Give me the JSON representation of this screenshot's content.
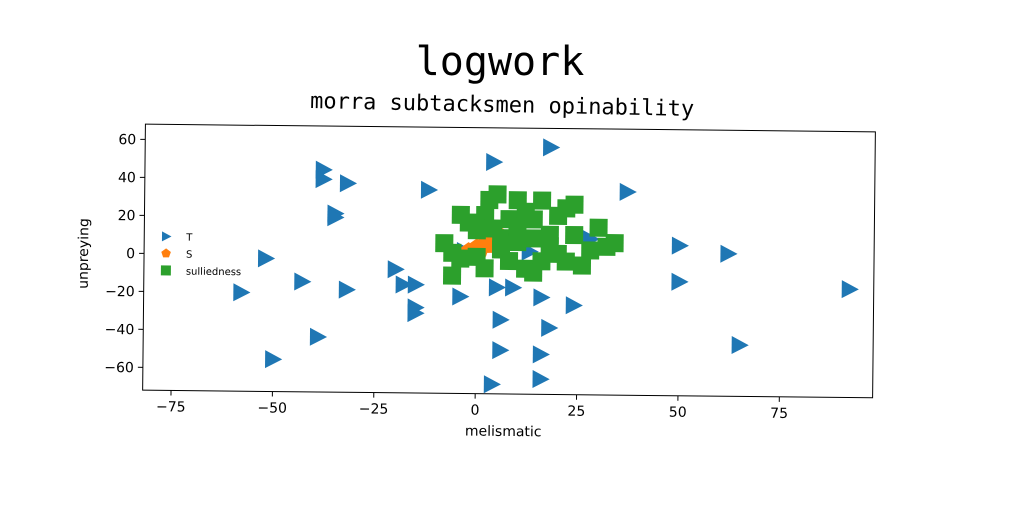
{
  "title": "logwork",
  "chart_data": {
    "type": "scatter",
    "title": "morra subtacksmen opinability",
    "xlabel": "melismatic",
    "ylabel": "unpreying",
    "xlim": [
      -82,
      98
    ],
    "ylim": [
      -72,
      68
    ],
    "xticks": [
      -75,
      -50,
      -25,
      0,
      25,
      50,
      75
    ],
    "yticks": [
      -60,
      -40,
      -20,
      0,
      20,
      40,
      60
    ],
    "grid": false,
    "legend_position": "center-left",
    "series": [
      {
        "name": "T",
        "marker": "triangle-right",
        "color": "#1f77b4",
        "points": [
          [
            -38,
            45
          ],
          [
            -38,
            40
          ],
          [
            -32,
            38
          ],
          [
            -35,
            22
          ],
          [
            -35,
            20
          ],
          [
            -12,
            35
          ],
          [
            4,
            50
          ],
          [
            18,
            58
          ],
          [
            37,
            35
          ],
          [
            -52,
            -2
          ],
          [
            -58,
            -20
          ],
          [
            -43,
            -14
          ],
          [
            -32,
            -18
          ],
          [
            -20,
            -7
          ],
          [
            -18,
            -15
          ],
          [
            -15,
            -15
          ],
          [
            -15,
            -27
          ],
          [
            -15,
            -30
          ],
          [
            -4,
            -21
          ],
          [
            5,
            -16
          ],
          [
            9,
            -16
          ],
          [
            16,
            -21
          ],
          [
            24,
            -25
          ],
          [
            28,
            10
          ],
          [
            -3,
            3
          ],
          [
            13,
            3
          ],
          [
            50,
            7
          ],
          [
            50,
            -12
          ],
          [
            62,
            3
          ],
          [
            6,
            -33
          ],
          [
            18,
            -37
          ],
          [
            -39,
            -43
          ],
          [
            -50,
            -55
          ],
          [
            6,
            -49
          ],
          [
            16,
            -51
          ],
          [
            4,
            -67
          ],
          [
            16,
            -64
          ],
          [
            65,
            -45
          ],
          [
            92,
            -15
          ]
        ]
      },
      {
        "name": "S",
        "marker": "pentagon",
        "color": "#ff7f0e",
        "points": [
          [
            -2,
            3
          ],
          [
            0,
            5
          ],
          [
            2,
            7
          ],
          [
            4,
            9
          ],
          [
            6,
            11
          ],
          [
            1,
            4
          ],
          [
            5,
            8
          ],
          [
            3,
            6
          ]
        ]
      },
      {
        "name": "sulliedness",
        "marker": "square",
        "color": "#2ca02c",
        "points": [
          [
            -8,
            7
          ],
          [
            -6,
            2
          ],
          [
            -4,
            22
          ],
          [
            -2,
            18
          ],
          [
            0,
            14
          ],
          [
            2,
            22
          ],
          [
            3,
            30
          ],
          [
            5,
            33
          ],
          [
            6,
            10
          ],
          [
            8,
            20
          ],
          [
            10,
            16
          ],
          [
            12,
            24
          ],
          [
            14,
            20
          ],
          [
            16,
            30
          ],
          [
            18,
            12
          ],
          [
            20,
            22
          ],
          [
            22,
            26
          ],
          [
            24,
            28
          ],
          [
            18,
            6
          ],
          [
            20,
            2
          ],
          [
            22,
            -2
          ],
          [
            26,
            -4
          ],
          [
            28,
            4
          ],
          [
            30,
            16
          ],
          [
            32,
            6
          ],
          [
            34,
            8
          ],
          [
            12,
            -6
          ],
          [
            14,
            -8
          ],
          [
            8,
            -2
          ],
          [
            2,
            -6
          ],
          [
            -4,
            -1
          ],
          [
            0,
            0
          ],
          [
            6,
            4
          ],
          [
            4,
            15
          ],
          [
            10,
            8
          ],
          [
            -6,
            -10
          ],
          [
            14,
            10
          ],
          [
            16,
            -2
          ],
          [
            24,
            12
          ],
          [
            10,
            30
          ]
        ]
      }
    ]
  }
}
